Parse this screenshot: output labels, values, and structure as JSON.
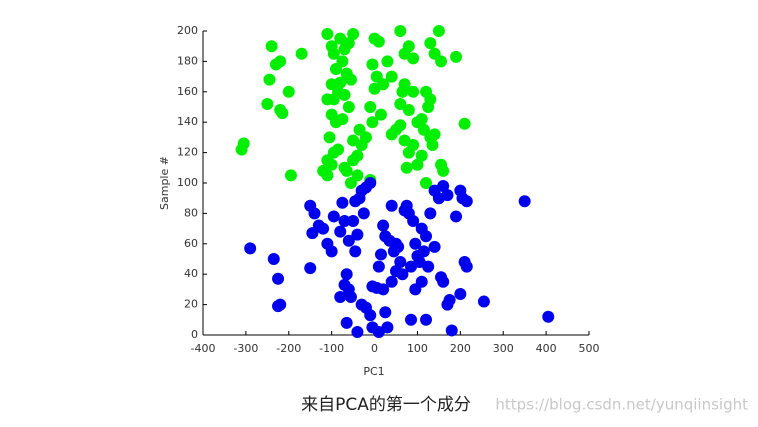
{
  "chart_data": {
    "type": "scatter",
    "xlabel": "PC1",
    "ylabel": "Sample #",
    "xlim": [
      -400,
      500
    ],
    "xticks": [
      -400,
      -300,
      -200,
      -100,
      0,
      100,
      200,
      300,
      400,
      500
    ],
    "ylim": [
      0,
      200
    ],
    "yticks": [
      0,
      20,
      40,
      60,
      80,
      100,
      120,
      140,
      160,
      180,
      200
    ],
    "series": [
      {
        "color": "#00ee00",
        "x": [
          -240,
          -230,
          -220,
          -245,
          -200,
          -250,
          -220,
          -215,
          -310,
          -305,
          -195,
          -170,
          -110,
          -100,
          -95,
          -80,
          -70,
          -60,
          -50,
          -75,
          -65,
          -55,
          -80,
          -90,
          -100,
          -110,
          -95,
          -85,
          -70,
          -60,
          -100,
          -90,
          -75,
          -105,
          -95,
          -85,
          -110,
          -100,
          -120,
          -110,
          -70,
          -65,
          -50,
          -40,
          -30,
          -35,
          -50,
          -20,
          -40,
          -10,
          -55,
          0,
          10,
          -5,
          5,
          0,
          20,
          -10,
          -5,
          15,
          40,
          50,
          60,
          70,
          80,
          90,
          75,
          100,
          110,
          65,
          70,
          90,
          80,
          60,
          70,
          80,
          90,
          60,
          130,
          150,
          140,
          155,
          190,
          120,
          130,
          125,
          110,
          130,
          140,
          160,
          155,
          210,
          120,
          135,
          30,
          40,
          100,
          115
        ],
        "values": [
          190,
          178,
          180,
          168,
          160,
          152,
          148,
          146,
          122,
          126,
          105,
          185,
          198,
          190,
          185,
          195,
          188,
          192,
          198,
          180,
          172,
          168,
          166,
          175,
          165,
          155,
          155,
          160,
          158,
          150,
          145,
          140,
          142,
          130,
          120,
          122,
          115,
          112,
          108,
          105,
          110,
          108,
          115,
          118,
          125,
          135,
          128,
          130,
          105,
          102,
          100,
          195,
          193,
          178,
          170,
          162,
          165,
          150,
          140,
          145,
          132,
          135,
          138,
          128,
          120,
          125,
          110,
          112,
          118,
          160,
          165,
          160,
          148,
          152,
          185,
          190,
          182,
          200,
          192,
          200,
          185,
          180,
          183,
          160,
          155,
          150,
          142,
          130,
          132,
          108,
          112,
          139,
          100,
          125,
          180,
          170,
          140,
          135
        ]
      },
      {
        "color": "#0000ee",
        "x": [
          -290,
          -235,
          -225,
          -220,
          -225,
          -150,
          -140,
          -130,
          -145,
          -150,
          -120,
          -110,
          -100,
          -95,
          -75,
          -70,
          -80,
          -60,
          -40,
          -50,
          -35,
          -30,
          -20,
          -10,
          -45,
          -25,
          -65,
          -70,
          -60,
          -55,
          -80,
          -65,
          -40,
          -45,
          -30,
          -20,
          -10,
          -5,
          5,
          10,
          15,
          20,
          25,
          35,
          40,
          45,
          50,
          55,
          60,
          65,
          70,
          75,
          80,
          90,
          95,
          100,
          105,
          85,
          95,
          110,
          115,
          120,
          110,
          125,
          140,
          150,
          160,
          170,
          155,
          160,
          170,
          175,
          180,
          190,
          200,
          205,
          215,
          200,
          210,
          215,
          255,
          350,
          405,
          85,
          120,
          20,
          25,
          30,
          10,
          -5,
          40,
          50,
          130,
          140
        ],
        "values": [
          57,
          50,
          37,
          20,
          19,
          85,
          80,
          72,
          67,
          44,
          70,
          60,
          55,
          78,
          87,
          75,
          68,
          62,
          66,
          75,
          90,
          95,
          97,
          100,
          88,
          80,
          40,
          33,
          30,
          25,
          25,
          8,
          2,
          55,
          20,
          18,
          13,
          32,
          31,
          45,
          53,
          72,
          65,
          62,
          85,
          55,
          60,
          58,
          48,
          40,
          82,
          85,
          80,
          75,
          60,
          52,
          48,
          45,
          30,
          35,
          55,
          65,
          70,
          45,
          95,
          90,
          98,
          92,
          38,
          35,
          20,
          23,
          3,
          78,
          95,
          90,
          88,
          27,
          48,
          45,
          22,
          88,
          12,
          10,
          10,
          30,
          15,
          5,
          2,
          5,
          35,
          42,
          80,
          58
        ]
      }
    ]
  },
  "caption": "来自PCA的第一个成分",
  "watermark": "https://blog.csdn.net/yunqiinsight"
}
